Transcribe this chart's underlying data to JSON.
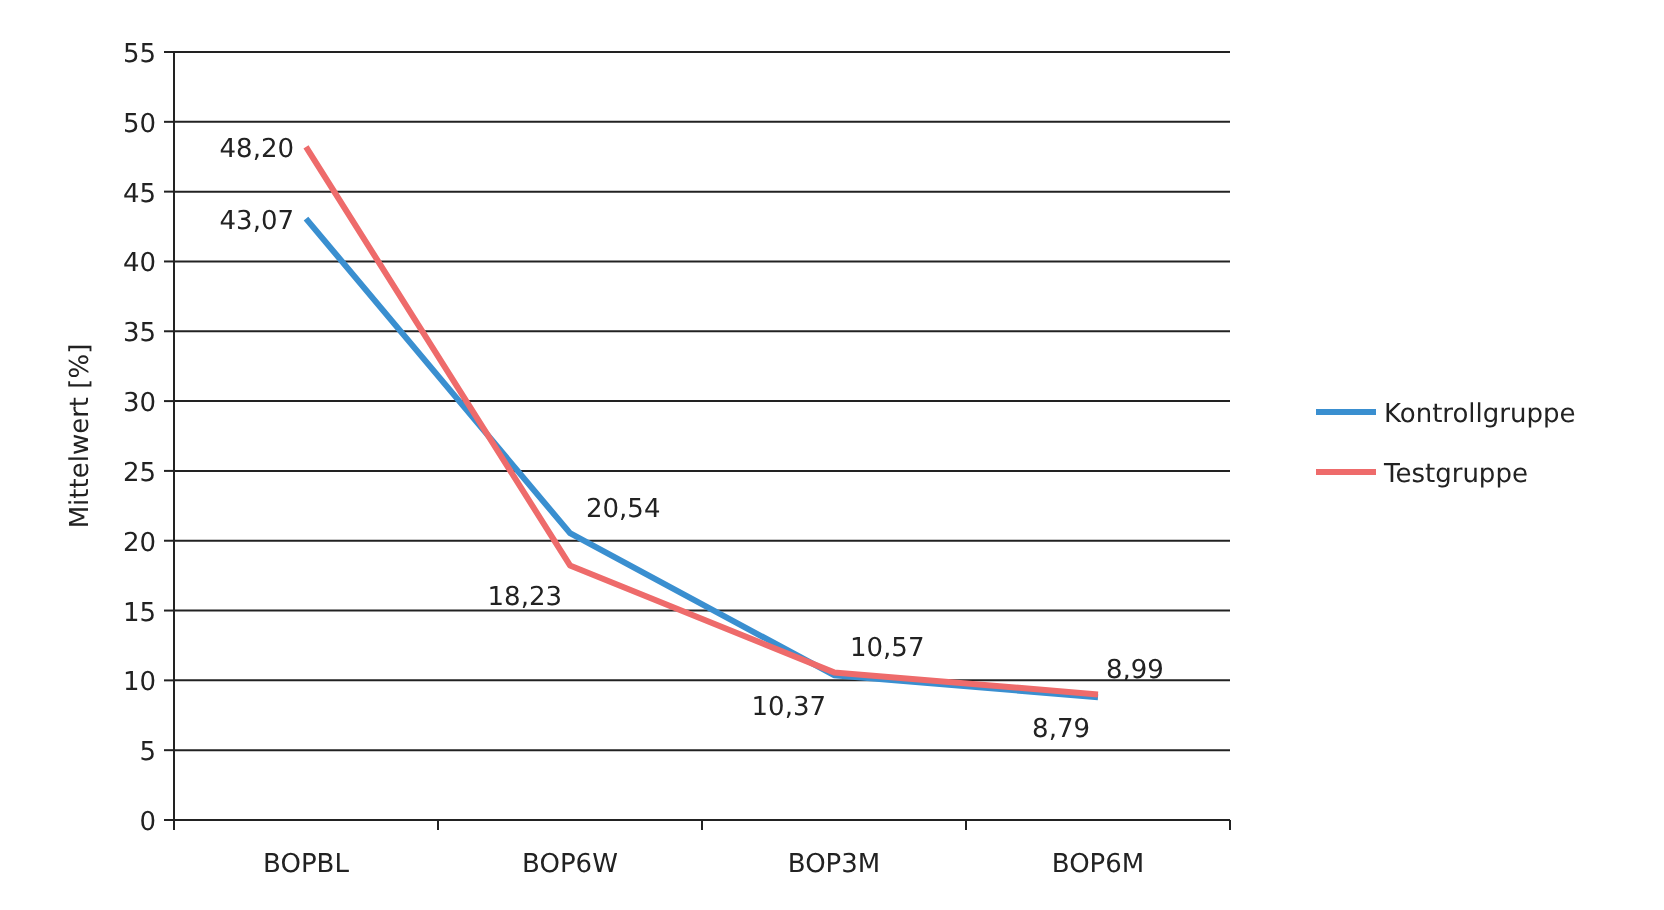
{
  "chart_data": {
    "type": "line",
    "ylabel": "Mittelwert [%]",
    "categories": [
      "BOPBL",
      "BOP6W",
      "BOP3M",
      "BOP6M"
    ],
    "series": [
      {
        "name": "Kontrollgruppe",
        "color": "#3a8fd0",
        "values": [
          43.07,
          20.54,
          10.37,
          8.79
        ],
        "value_labels": [
          "43,07",
          "20,54",
          "10,37",
          "8,79"
        ]
      },
      {
        "name": "Testgruppe",
        "color": "#ee6b6b",
        "values": [
          48.2,
          18.23,
          10.57,
          8.99
        ],
        "value_labels": [
          "48,20",
          "18,23",
          "10,57",
          "8,99"
        ]
      }
    ],
    "ylim": [
      0,
      55
    ],
    "yticks": [
      0,
      5,
      10,
      15,
      20,
      25,
      30,
      35,
      40,
      45,
      50,
      55
    ],
    "grid": "y",
    "legend": "right",
    "marker": "none",
    "line_style": "solid"
  }
}
